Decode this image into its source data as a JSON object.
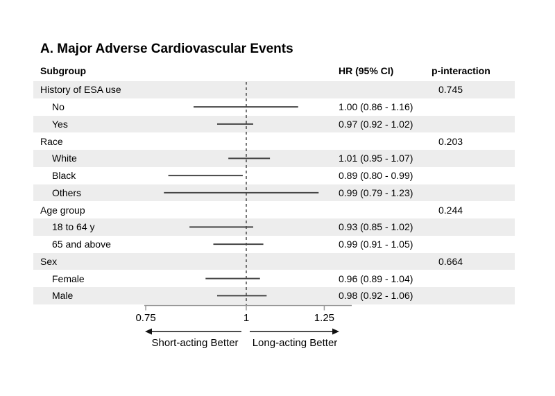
{
  "chart_data": {
    "type": "forest",
    "title": "A. Major Adverse Cardiovascular Events",
    "columns": [
      "Subgroup",
      "HR (95% CI)",
      "p-interaction"
    ],
    "x_axis": {
      "scale": "log",
      "ticks": [
        0.75,
        1,
        1.25
      ],
      "tick_labels": [
        "0.75",
        "1",
        "1.25"
      ],
      "range": [
        0.75,
        1.35
      ],
      "reference_line": 1,
      "grid": false
    },
    "direction_labels": {
      "left": "Short-acting Better",
      "right": "Long-acting Better"
    },
    "rows": [
      {
        "label": "History of ESA use",
        "indent": false,
        "shaded": true,
        "p_interaction": "0.745"
      },
      {
        "label": "No",
        "indent": true,
        "shaded": false,
        "hr": 1.0,
        "ci_low": 0.86,
        "ci_high": 1.16,
        "hr_text": "1.00 (0.86 - 1.16)"
      },
      {
        "label": "Yes",
        "indent": true,
        "shaded": true,
        "hr": 0.97,
        "ci_low": 0.92,
        "ci_high": 1.02,
        "hr_text": "0.97 (0.92 - 1.02)"
      },
      {
        "label": "Race",
        "indent": false,
        "shaded": false,
        "p_interaction": "0.203"
      },
      {
        "label": "White",
        "indent": true,
        "shaded": true,
        "hr": 1.01,
        "ci_low": 0.95,
        "ci_high": 1.07,
        "hr_text": "1.01 (0.95 - 1.07)"
      },
      {
        "label": "Black",
        "indent": true,
        "shaded": false,
        "hr": 0.89,
        "ci_low": 0.8,
        "ci_high": 0.99,
        "hr_text": "0.89 (0.80 - 0.99)"
      },
      {
        "label": "Others",
        "indent": true,
        "shaded": true,
        "hr": 0.99,
        "ci_low": 0.79,
        "ci_high": 1.23,
        "hr_text": "0.99 (0.79 - 1.23)"
      },
      {
        "label": "Age group",
        "indent": false,
        "shaded": false,
        "p_interaction": "0.244"
      },
      {
        "label": "18 to 64 y",
        "indent": true,
        "shaded": true,
        "hr": 0.93,
        "ci_low": 0.85,
        "ci_high": 1.02,
        "hr_text": "0.93 (0.85 - 1.02)"
      },
      {
        "label": "65 and above",
        "indent": true,
        "shaded": false,
        "hr": 0.99,
        "ci_low": 0.91,
        "ci_high": 1.05,
        "hr_text": "0.99 (0.91 - 1.05)"
      },
      {
        "label": "Sex",
        "indent": false,
        "shaded": true,
        "p_interaction": "0.664"
      },
      {
        "label": "Female",
        "indent": true,
        "shaded": false,
        "hr": 0.96,
        "ci_low": 0.89,
        "ci_high": 1.04,
        "hr_text": "0.96 (0.89 - 1.04)"
      },
      {
        "label": "Male",
        "indent": true,
        "shaded": true,
        "hr": 0.98,
        "ci_low": 0.92,
        "ci_high": 1.06,
        "hr_text": "0.98 (0.92 - 1.06)"
      }
    ],
    "colors": {
      "row_shading": "#ededed",
      "ci_line": "#444444",
      "reference_line": "#4a4a4a",
      "axis_line": "#999999",
      "arrow": "#111111",
      "text": "#000000",
      "background": "#ffffff"
    }
  }
}
